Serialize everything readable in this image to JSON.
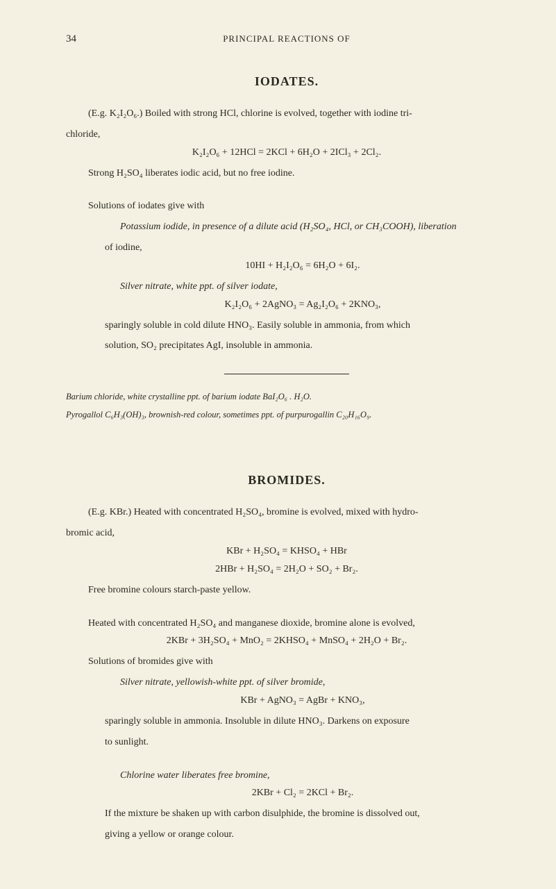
{
  "page_number": "34",
  "running_head": "PRINCIPAL REACTIONS OF",
  "section1": {
    "title": "IODATES.",
    "p1a": "(E.g. K₂I₂O₆.)   Boiled with strong HCl, chlorine is evolved, together with iodine tri-",
    "p1b": "chloride,",
    "eq1": "K₂I₂O₆ + 12HCl = 2KCl + 6H₂O + 2ICl₃ + 2Cl₂.",
    "p2": "Strong H₂SO₄ liberates iodic acid, but no free iodine.",
    "p3": "Solutions of iodates give with",
    "s1": {
      "p1a": "Potassium iodide, in presence of a dilute acid (H₂SO₄, HCl, or CH₃COOH), liberation",
      "p1b": "of iodine,",
      "eq": "10HI + H₂I₂O₆ = 6H₂O + 6I₂."
    },
    "s2": {
      "p1": "Silver nitrate, white ppt. of silver iodate,",
      "eq": "K₂I₂O₆ + 2AgNO₃ = Ag₂I₂O₆ + 2KNO₃,",
      "p2a": "sparingly soluble in cold dilute HNO₃.   Easily soluble in ammonia, from which",
      "p2b": "solution, SO₂ precipitates AgI, insoluble in ammonia."
    },
    "note1": "Barium chloride, white crystalline ppt. of barium iodate BaI₂O₆ . H₂O.",
    "note2": "Pyrogallol C₆H₃(OH)₃, brownish-red colour, sometimes ppt. of purpurogallin C₂₀H₁₆O₉."
  },
  "section2": {
    "title": "BROMIDES.",
    "p1a": "(E.g. KBr.)   Heated with concentrated H₂SO₄, bromine is evolved, mixed with hydro-",
    "p1b": "bromic acid,",
    "eq1": "KBr + H₂SO₄ = KHSO₄ + HBr",
    "eq2": "2HBr + H₂SO₄ = 2H₂O + SO₂ + Br₂.",
    "p2": "Free bromine colours starch-paste yellow.",
    "p3": "Heated with concentrated H₂SO₄ and manganese dioxide, bromine alone is evolved,",
    "eq3": "2KBr + 3H₂SO₄ + MnO₂ = 2KHSO₄ + MnSO₄ + 2H₂O + Br₂.",
    "p4": "Solutions of bromides give with",
    "s1": {
      "p1": "Silver nitrate, yellowish-white ppt. of silver bromide,",
      "eq": "KBr + AgNO₃ = AgBr + KNO₃,",
      "p2a": "sparingly soluble in ammonia.   Insoluble in dilute HNO₃.   Darkens on exposure",
      "p2b": "to sunlight."
    },
    "s2": {
      "p1": "Chlorine water liberates free bromine,",
      "eq": "2KBr + Cl₂ = 2KCl + Br₂.",
      "p2a": "If the mixture be shaken up with carbon disulphide, the bromine is dissolved out,",
      "p2b": "giving a yellow or orange colour."
    }
  }
}
